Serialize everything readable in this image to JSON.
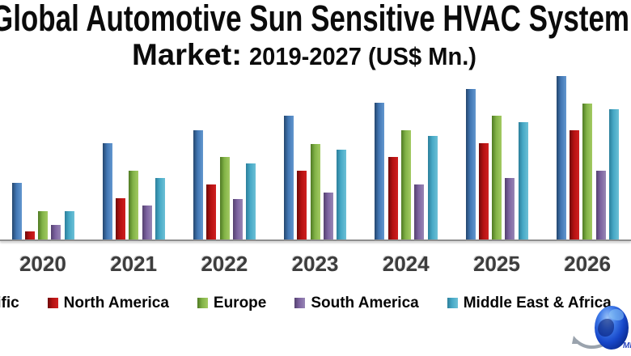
{
  "header": {
    "line1": "Global Automotive Sun Sensitive HVAC System",
    "line2_market": "Market:",
    "line2_range": "2019-2027 (US$ Mn.)"
  },
  "chart_data": {
    "type": "bar",
    "title": "Global Automotive Sun Sensitive HVAC System Market: 2019-2027 (US$ Mn.)",
    "unit": "US$ Mn.",
    "categories": [
      "2020",
      "2021",
      "2022",
      "2023",
      "2024",
      "2025",
      "2026"
    ],
    "series": [
      {
        "name": "Asia Pacific",
        "color": "#4277b4",
        "values": [
          70,
          119,
          135,
          153,
          169,
          186,
          202
        ]
      },
      {
        "name": "North America",
        "color": "#b41212",
        "values": [
          10,
          51,
          68,
          85,
          102,
          119,
          135
        ]
      },
      {
        "name": "Europe",
        "color": "#82b347",
        "values": [
          35,
          85,
          102,
          118,
          135,
          153,
          168
        ]
      },
      {
        "name": "South America",
        "color": "#7d63a0",
        "values": [
          18,
          42,
          50,
          58,
          68,
          76,
          85
        ]
      },
      {
        "name": "Middle East & Africa",
        "color": "#47a9c6",
        "values": [
          35,
          76,
          94,
          111,
          128,
          145,
          161
        ]
      }
    ],
    "legend_position": "bottom",
    "grid": false,
    "ylim": null,
    "axis_note": "y-axis cropped out of the screenshot; series values are measured bar heights in pixels (baseline y=296)",
    "crop_note": "image cropped left/right: 2019 and 2027 groups not visible; first legend label shows only 'ific'"
  }
}
